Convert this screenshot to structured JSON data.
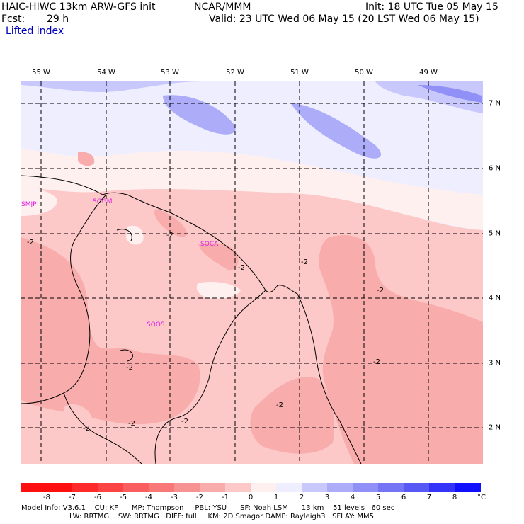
{
  "header": {
    "model": "HAIC-HIWC 13km ARW-GFS init",
    "org": "NCAR/MMM",
    "init": "Init: 18 UTC Tue 05 May 15",
    "fcst_label": "Fcst:",
    "fcst_value": "29 h",
    "valid": "Valid: 23 UTC Wed 06 May 15 (20 LST Wed 06 May 15)",
    "field": "Lifted index"
  },
  "lon_labels": [
    "55 W",
    "54 W",
    "53 W",
    "52 W",
    "51 W",
    "50 W",
    "49 W"
  ],
  "lat_labels": [
    "7 N",
    "6 N",
    "5 N",
    "4 N",
    "3 N",
    "2 N"
  ],
  "stations": [
    "SMJP",
    "SOGM",
    "SOCA",
    "SOOS"
  ],
  "contour_labels": [
    "-2",
    "-2",
    "-2",
    "-2",
    "-2",
    "-2",
    "-2",
    "-2",
    "-2",
    "-2",
    "-2"
  ],
  "colorbar": {
    "ticks": [
      "-8",
      "-7",
      "-6",
      "-5",
      "-4",
      "-3",
      "-2",
      "-1",
      "0",
      "1",
      "2",
      "3",
      "4",
      "5",
      "6",
      "7",
      "8"
    ],
    "unit": "°C",
    "colors": [
      "#ff1010",
      "#ff2a2a",
      "#fc4444",
      "#fa5e5e",
      "#f87878",
      "#f69292",
      "#f8acac",
      "#fcc8c8",
      "#fff0f0",
      "#eeeeff",
      "#c8c8fc",
      "#acacf8",
      "#9090f6",
      "#7474f4",
      "#5858f4",
      "#3434f8",
      "#1010fc"
    ]
  },
  "footer": {
    "line1": "Model Info: V3.6.1    CU: KF      MP: Thompson     PBL: YSU      SF: Noah LSM      13 km    51 levels   60 sec",
    "line2": "LW: RRTMG    SW: RRTMG   DIFF: full     KM: 2D Smagor DAMP: Rayleigh3   SFLAY: MM5"
  }
}
